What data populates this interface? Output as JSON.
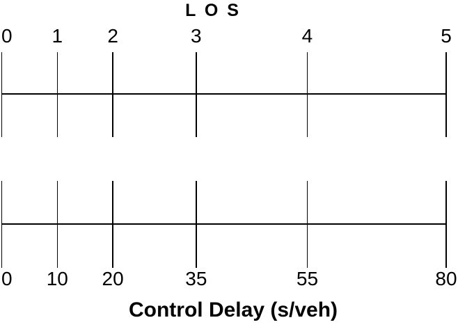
{
  "chart_data": {
    "type": "table",
    "title": "L O S",
    "xlabel": "Control Delay (s/veh)",
    "layout": "two aligned horizontal tick scales; LOS score ticks align with control delay thresholds",
    "axis_range": [
      0,
      80
    ],
    "delay_values": [
      0,
      10,
      20,
      35,
      55,
      80
    ],
    "scales": [
      {
        "name": "LOS",
        "tick_labels": [
          "0",
          "1",
          "2",
          "3",
          "4",
          "5"
        ]
      },
      {
        "name": "Control Delay (s/veh)",
        "tick_labels": [
          "0",
          "10",
          "20",
          "35",
          "55",
          "80"
        ]
      }
    ],
    "mapping": [
      {
        "los": 0,
        "delay": 0
      },
      {
        "los": 1,
        "delay": 10
      },
      {
        "los": 2,
        "delay": 20
      },
      {
        "los": 3,
        "delay": 35
      },
      {
        "los": 4,
        "delay": 55
      },
      {
        "los": 5,
        "delay": 80
      }
    ],
    "grid": false,
    "legend": false
  },
  "colors": {
    "line": "#000000",
    "text": "#000000",
    "background": "#ffffff"
  }
}
